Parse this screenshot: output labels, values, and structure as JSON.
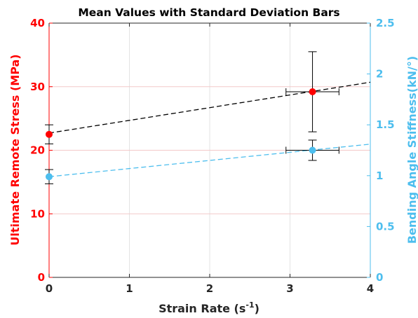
{
  "chart_data": {
    "type": "scatter",
    "title": "Mean Values with Standard Deviation Bars",
    "xlabel": "Strain Rate (s",
    "xlabel_superscript": "-1",
    "xlabel_suffix": ")",
    "ylabel_left": "Ultimate Remote Stress (MPa)",
    "ylabel_right": "Bending Angle Stiffness(kN/°)",
    "xlim": [
      0,
      4
    ],
    "ylim_left": [
      0,
      40
    ],
    "ylim_right": [
      0,
      2.5
    ],
    "x_ticks": [
      "0",
      "1",
      "2",
      "3",
      "4"
    ],
    "y_left_ticks": [
      "0",
      "10",
      "20",
      "30",
      "40"
    ],
    "y_right_ticks": [
      "0",
      "0.5",
      "1",
      "1.5",
      "2",
      "2.5"
    ],
    "grid": true,
    "colors": {
      "left": "#ff0000",
      "right": "#4dbeee",
      "trend_left": "#000000",
      "trend_right": "#4dbeee",
      "errorbar": "#000000",
      "grid": "#f3c9c9",
      "axes": "#262626"
    },
    "series": [
      {
        "axis": "left",
        "points": [
          {
            "x": 0.0,
            "y": 22.5,
            "yerr": 1.5,
            "xerr": 0
          },
          {
            "x": 3.28,
            "y": 29.2,
            "yerr": 6.3,
            "xerr": 0.33
          }
        ],
        "trend": {
          "x": [
            0,
            4
          ],
          "y": [
            22.7,
            30.7
          ]
        }
      },
      {
        "axis": "right",
        "points": [
          {
            "x": 0.0,
            "y": 0.99,
            "yerr": 0.07,
            "xerr": 0
          },
          {
            "x": 3.28,
            "y": 1.25,
            "yerr": 0.1,
            "xerr": 0.33
          }
        ],
        "trend": {
          "x": [
            0,
            4
          ],
          "y": [
            0.99,
            1.31
          ]
        }
      }
    ]
  }
}
